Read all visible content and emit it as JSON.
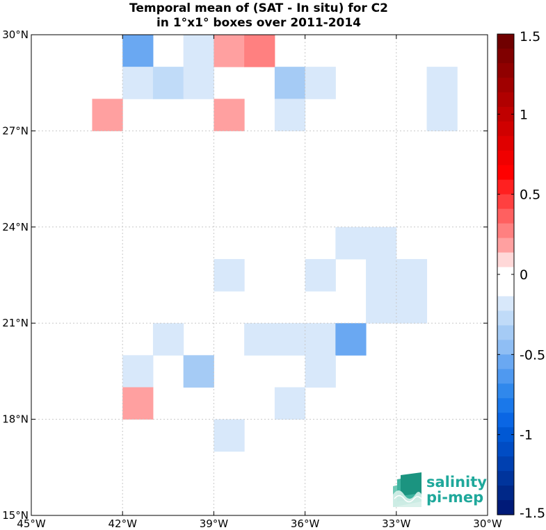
{
  "title": {
    "line1": "Temporal mean of (SAT - In situ) for C2",
    "line2": "in 1°x1° boxes over 2011-2014"
  },
  "logo": {
    "line1": "salinity",
    "line2": "pi-mep"
  },
  "chart_data": {
    "type": "heatmap",
    "xlim": [
      -45,
      -30
    ],
    "ylim": [
      15,
      30
    ],
    "x_ticks": [
      {
        "value": -45,
        "label": "45°W"
      },
      {
        "value": -42,
        "label": "42°W"
      },
      {
        "value": -39,
        "label": "39°W"
      },
      {
        "value": -36,
        "label": "36°W"
      },
      {
        "value": -33,
        "label": "33°W"
      },
      {
        "value": -30,
        "label": "30°W"
      }
    ],
    "y_ticks": [
      {
        "value": 15,
        "label": "15°N"
      },
      {
        "value": 18,
        "label": "18°N"
      },
      {
        "value": 21,
        "label": "21°N"
      },
      {
        "value": 24,
        "label": "24°N"
      },
      {
        "value": 27,
        "label": "27°N"
      },
      {
        "value": 30,
        "label": "30°N"
      }
    ],
    "grid": true,
    "colorbar": {
      "range": [
        -1.5,
        1.5
      ],
      "ticks": [
        {
          "value": 1.5,
          "label": "1.5"
        },
        {
          "value": 1,
          "label": "1"
        },
        {
          "value": 0.5,
          "label": "0.5"
        },
        {
          "value": 0,
          "label": "0"
        },
        {
          "value": -0.5,
          "label": "-0.5"
        },
        {
          "value": -1,
          "label": "-1"
        },
        {
          "value": -1.5,
          "label": "-1.5"
        }
      ],
      "colors_top_to_bottom": [
        "#700000",
        "#800000",
        "#900000",
        "#a00000",
        "#b00000",
        "#c00000",
        "#d00000",
        "#e00000",
        "#f00000",
        "#ff0000",
        "#ff2020",
        "#ff4040",
        "#ff6060",
        "#ff8080",
        "#ffa0a0",
        "#ffd8d8",
        "#ffffff",
        "#ffffff",
        "#d8e8fa",
        "#c0dbf8",
        "#a5cbf5",
        "#8fbef4",
        "#6aa8f2",
        "#4f99f0",
        "#3088ec",
        "#1a78ea",
        "#0a66e4",
        "#0058d4",
        "#004cc4",
        "#0040b0",
        "#00349c",
        "#002888",
        "#001a78"
      ]
    },
    "cells": [
      {
        "lon": -41.5,
        "lat": 29.5,
        "value": -0.5
      },
      {
        "lon": -39.5,
        "lat": 29.5,
        "value": -0.2
      },
      {
        "lon": -38.5,
        "lat": 29.5,
        "value": 0.15
      },
      {
        "lon": -37.5,
        "lat": 29.5,
        "value": 0.3
      },
      {
        "lon": -41.5,
        "lat": 28.5,
        "value": -0.2
      },
      {
        "lon": -40.5,
        "lat": 28.5,
        "value": -0.3
      },
      {
        "lon": -39.5,
        "lat": 28.5,
        "value": -0.2
      },
      {
        "lon": -36.5,
        "lat": 28.5,
        "value": -0.4
      },
      {
        "lon": -35.5,
        "lat": 28.5,
        "value": -0.2
      },
      {
        "lon": -31.5,
        "lat": 28.5,
        "value": -0.15
      },
      {
        "lon": -42.5,
        "lat": 27.5,
        "value": 0.15
      },
      {
        "lon": -38.5,
        "lat": 27.5,
        "value": 0.15
      },
      {
        "lon": -36.5,
        "lat": 27.5,
        "value": -0.15
      },
      {
        "lon": -31.5,
        "lat": 27.5,
        "value": -0.15
      },
      {
        "lon": -34.5,
        "lat": 23.5,
        "value": -0.15
      },
      {
        "lon": -33.5,
        "lat": 23.5,
        "value": -0.15
      },
      {
        "lon": -38.5,
        "lat": 22.5,
        "value": -0.2
      },
      {
        "lon": -35.5,
        "lat": 22.5,
        "value": -0.2
      },
      {
        "lon": -33.5,
        "lat": 22.5,
        "value": -0.15
      },
      {
        "lon": -32.5,
        "lat": 22.5,
        "value": -0.15
      },
      {
        "lon": -33.5,
        "lat": 21.5,
        "value": -0.15
      },
      {
        "lon": -32.5,
        "lat": 21.5,
        "value": -0.15
      },
      {
        "lon": -40.5,
        "lat": 20.5,
        "value": -0.2
      },
      {
        "lon": -37.5,
        "lat": 20.5,
        "value": -0.15
      },
      {
        "lon": -36.5,
        "lat": 20.5,
        "value": -0.15
      },
      {
        "lon": -35.5,
        "lat": 20.5,
        "value": -0.15
      },
      {
        "lon": -34.5,
        "lat": 20.5,
        "value": -0.55
      },
      {
        "lon": -41.5,
        "lat": 19.5,
        "value": -0.2
      },
      {
        "lon": -39.5,
        "lat": 19.5,
        "value": -0.35
      },
      {
        "lon": -35.5,
        "lat": 19.5,
        "value": -0.2
      },
      {
        "lon": -41.5,
        "lat": 18.5,
        "value": 0.15
      },
      {
        "lon": -36.5,
        "lat": 18.5,
        "value": -0.2
      },
      {
        "lon": -38.5,
        "lat": 17.5,
        "value": -0.2
      }
    ]
  }
}
